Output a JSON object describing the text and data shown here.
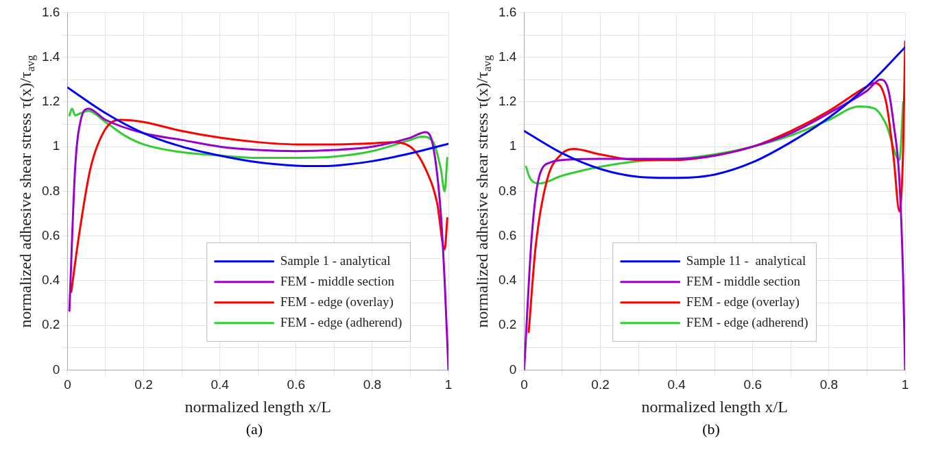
{
  "chart_data": [
    {
      "type": "line",
      "xlabel": "normalized length x/L",
      "ylabel": "normalized adhesive shear stress τ(x)/τ$_{avg}$",
      "annotations": [
        "(a)"
      ],
      "xlim": [
        0,
        1
      ],
      "ylim": [
        0,
        1.6
      ],
      "xticks": [
        0,
        {
          "value": 0.1,
          "label": null
        },
        0.2,
        {
          "value": 0.3,
          "label": null
        },
        0.4,
        {
          "value": 0.5,
          "label": null
        },
        0.6,
        {
          "value": 0.7,
          "label": null
        },
        0.8,
        {
          "value": 0.9,
          "label": null
        },
        1
      ],
      "yticks": [
        0,
        {
          "value": 0.1,
          "label": null
        },
        0.2,
        {
          "value": 0.3,
          "label": null
        },
        0.4,
        {
          "value": 0.5,
          "label": null
        },
        0.6,
        {
          "value": 0.7,
          "label": null
        },
        0.8,
        {
          "value": 0.9,
          "label": null
        },
        1,
        {
          "value": 1.1,
          "label": null
        },
        1.2,
        {
          "value": 1.3,
          "label": null
        },
        1.4,
        {
          "value": 1.5,
          "label": null
        },
        1.6
      ],
      "grid": true,
      "legend": "bottom right",
      "marker": "none",
      "line_style": "solid",
      "series": [
        {
          "name": "Sample 1 - analytical",
          "color": "#0000ff",
          "x": [
            0,
            0.1,
            0.2,
            0.3,
            0.4,
            0.5,
            0.6,
            0.65,
            0.7,
            0.8,
            0.9,
            1
          ],
          "values": [
            1.265,
            1.15,
            1.06,
            1.0,
            0.96,
            0.93,
            0.915,
            0.913,
            0.915,
            0.935,
            0.97,
            1.013
          ]
        },
        {
          "name": "FEM - middle section",
          "color": "#9900cc",
          "x": [
            0.005,
            0.02,
            0.035,
            0.055,
            0.1,
            0.2,
            0.3,
            0.4,
            0.5,
            0.6,
            0.7,
            0.8,
            0.9,
            0.94,
            0.96,
            0.98,
            0.99,
            1
          ],
          "values": [
            0.265,
            0.9,
            1.12,
            1.17,
            1.12,
            1.06,
            1.03,
            1.0,
            0.985,
            0.98,
            0.985,
            1.0,
            1.04,
            1.065,
            1.0,
            0.7,
            0.4,
            0
          ]
        },
        {
          "name": "FEM - edge (overlay)",
          "color": "#ff0000",
          "x": [
            0.01,
            0.03,
            0.06,
            0.1,
            0.14,
            0.2,
            0.3,
            0.4,
            0.5,
            0.6,
            0.7,
            0.8,
            0.85,
            0.9,
            0.94,
            0.97,
            0.99,
            0.997
          ],
          "values": [
            0.35,
            0.6,
            0.9,
            1.08,
            1.12,
            1.11,
            1.07,
            1.04,
            1.02,
            1.01,
            1.01,
            1.015,
            1.02,
            1.0,
            0.9,
            0.75,
            0.54,
            0.68
          ]
        },
        {
          "name": "FEM - edge (adherend)",
          "color": "#33cc33",
          "x": [
            0.005,
            0.012,
            0.02,
            0.035,
            0.055,
            0.1,
            0.15,
            0.2,
            0.3,
            0.4,
            0.5,
            0.6,
            0.7,
            0.8,
            0.9,
            0.93,
            0.96,
            0.98,
            0.99,
            0.997
          ],
          "values": [
            1.14,
            1.17,
            1.14,
            1.15,
            1.16,
            1.11,
            1.05,
            1.01,
            0.975,
            0.96,
            0.95,
            0.95,
            0.955,
            0.98,
            1.03,
            1.045,
            1.02,
            0.9,
            0.8,
            0.95
          ]
        }
      ]
    },
    {
      "type": "line",
      "xlabel": "normalized length x/L",
      "ylabel": "normalized adhesive shear stress τ(x)/τ$_{avg}$",
      "annotations": [
        "(b)"
      ],
      "xlim": [
        0,
        1
      ],
      "ylim": [
        0,
        1.6
      ],
      "xticks": [
        0,
        {
          "value": 0.1,
          "label": null
        },
        0.2,
        {
          "value": 0.3,
          "label": null
        },
        0.4,
        {
          "value": 0.5,
          "label": null
        },
        0.6,
        {
          "value": 0.7,
          "label": null
        },
        0.8,
        {
          "value": 0.9,
          "label": null
        },
        1
      ],
      "yticks": [
        0,
        {
          "value": 0.1,
          "label": null
        },
        0.2,
        {
          "value": 0.3,
          "label": null
        },
        0.4,
        {
          "value": 0.5,
          "label": null
        },
        0.6,
        {
          "value": 0.7,
          "label": null
        },
        0.8,
        {
          "value": 0.9,
          "label": null
        },
        1,
        {
          "value": 1.1,
          "label": null
        },
        1.2,
        {
          "value": 1.3,
          "label": null
        },
        1.4,
        {
          "value": 1.5,
          "label": null
        },
        1.6
      ],
      "grid": true,
      "legend": "bottom",
      "marker": "none",
      "line_style": "solid",
      "series": [
        {
          "name": "Sample 11 -  analytical",
          "color": "#0000ff",
          "x": [
            0,
            0.1,
            0.2,
            0.3,
            0.4,
            0.5,
            0.6,
            0.7,
            0.8,
            0.9,
            1
          ],
          "values": [
            1.07,
            0.97,
            0.9,
            0.865,
            0.86,
            0.875,
            0.93,
            1.02,
            1.13,
            1.27,
            1.445
          ]
        },
        {
          "name": "FEM - middle section",
          "color": "#9900cc",
          "x": [
            0,
            0.02,
            0.04,
            0.07,
            0.1,
            0.2,
            0.3,
            0.4,
            0.5,
            0.6,
            0.7,
            0.8,
            0.9,
            0.935,
            0.955,
            0.97,
            0.985,
            0.995,
            1
          ],
          "values": [
            0,
            0.6,
            0.87,
            0.93,
            0.94,
            0.945,
            0.945,
            0.945,
            0.96,
            1.0,
            1.06,
            1.15,
            1.25,
            1.3,
            1.26,
            1.1,
            0.85,
            0.4,
            0
          ]
        },
        {
          "name": "FEM - edge (overlay)",
          "color": "#ff0000",
          "x": [
            0.012,
            0.03,
            0.06,
            0.1,
            0.13,
            0.2,
            0.3,
            0.4,
            0.5,
            0.6,
            0.7,
            0.8,
            0.9,
            0.92,
            0.95,
            0.97,
            0.985,
            0.995,
            1
          ],
          "values": [
            0.17,
            0.55,
            0.85,
            0.97,
            0.99,
            0.965,
            0.94,
            0.94,
            0.96,
            1.0,
            1.07,
            1.16,
            1.27,
            1.285,
            1.2,
            0.95,
            0.71,
            1.0,
            1.47
          ]
        },
        {
          "name": "FEM - edge (adherend)",
          "color": "#33cc33",
          "x": [
            0.005,
            0.015,
            0.04,
            0.1,
            0.2,
            0.3,
            0.4,
            0.5,
            0.6,
            0.7,
            0.8,
            0.88,
            0.92,
            0.95,
            0.985,
            0.995
          ],
          "values": [
            0.91,
            0.86,
            0.835,
            0.87,
            0.91,
            0.935,
            0.945,
            0.965,
            1.0,
            1.05,
            1.12,
            1.18,
            1.17,
            1.1,
            0.94,
            1.2
          ]
        }
      ]
    }
  ]
}
